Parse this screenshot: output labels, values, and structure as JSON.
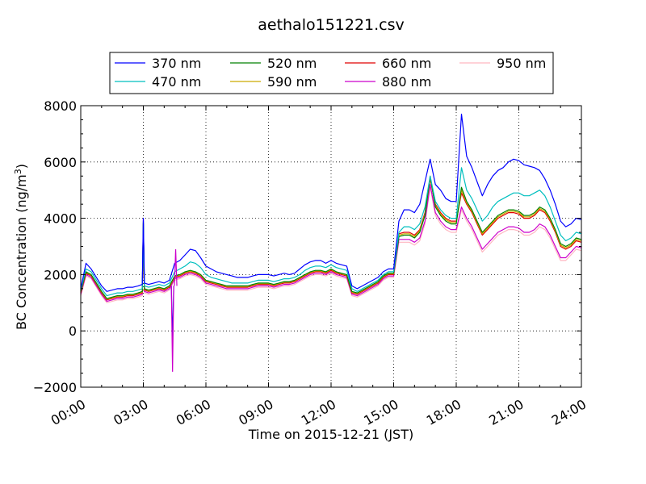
{
  "chart_data": {
    "type": "line",
    "title": "aethalo151221.csv",
    "xlabel": "Time on 2015-12-21 (JST)",
    "ylabel": "BC Concentration (ng/m",
    "ylabel_sup": "3",
    "ylabel_end": ")",
    "xlim": [
      0,
      24
    ],
    "ylim": [
      -2000,
      8000
    ],
    "x_ticks": [
      0,
      3,
      6,
      9,
      12,
      15,
      18,
      21,
      24
    ],
    "x_tick_labels": [
      "00:00",
      "03:00",
      "06:00",
      "09:00",
      "12:00",
      "15:00",
      "18:00",
      "21:00",
      "24:00"
    ],
    "y_ticks": [
      -2000,
      0,
      2000,
      4000,
      6000,
      8000
    ],
    "y_tick_labels": [
      "−2000",
      "0",
      "2000",
      "4000",
      "6000",
      "8000"
    ],
    "grid": true,
    "legend_position": "top-center",
    "x": [
      0.0,
      0.25,
      0.5,
      0.75,
      1.0,
      1.25,
      1.5,
      1.75,
      2.0,
      2.25,
      2.5,
      2.75,
      2.95,
      3.0,
      3.05,
      3.25,
      3.5,
      3.75,
      4.0,
      4.25,
      4.5,
      4.75,
      5.0,
      5.25,
      5.5,
      5.75,
      6.0,
      6.25,
      6.5,
      6.75,
      7.0,
      7.25,
      7.5,
      7.75,
      8.0,
      8.25,
      8.5,
      8.75,
      9.0,
      9.25,
      9.5,
      9.75,
      10.0,
      10.25,
      10.5,
      10.75,
      11.0,
      11.25,
      11.5,
      11.75,
      12.0,
      12.25,
      12.5,
      12.75,
      13.0,
      13.25,
      13.5,
      13.75,
      14.0,
      14.25,
      14.5,
      14.75,
      15.0,
      15.25,
      15.5,
      15.75,
      16.0,
      16.25,
      16.5,
      16.75,
      17.0,
      17.25,
      17.5,
      17.75,
      18.0,
      18.25,
      18.5,
      18.75,
      19.0,
      19.25,
      19.5,
      19.75,
      20.0,
      20.25,
      20.5,
      20.75,
      21.0,
      21.25,
      21.5,
      21.75,
      22.0,
      22.25,
      22.5,
      22.75,
      23.0,
      23.25,
      23.5,
      23.75,
      24.0
    ],
    "series": [
      {
        "name": "370 nm",
        "color": "#0000ff",
        "values": [
          1500,
          2400,
          2200,
          1900,
          1600,
          1400,
          1450,
          1500,
          1500,
          1550,
          1550,
          1600,
          1650,
          4000,
          1700,
          1650,
          1700,
          1750,
          1700,
          1800,
          2400,
          2500,
          2700,
          2900,
          2850,
          2600,
          2300,
          2200,
          2100,
          2050,
          2000,
          1950,
          1900,
          1900,
          1900,
          1950,
          2000,
          2000,
          2000,
          1950,
          2000,
          2050,
          2000,
          2050,
          2200,
          2350,
          2450,
          2500,
          2500,
          2400,
          2500,
          2400,
          2350,
          2300,
          1600,
          1500,
          1600,
          1700,
          1800,
          1900,
          2100,
          2200,
          2200,
          3900,
          4300,
          4300,
          4200,
          4500,
          5300,
          6100,
          5200,
          5000,
          4700,
          4600,
          4600,
          7700,
          6200,
          5800,
          5300,
          4800,
          5200,
          5500,
          5700,
          5800,
          6000,
          6100,
          6050,
          5900,
          5850,
          5800,
          5700,
          5400,
          5000,
          4500,
          3900,
          3700,
          3800,
          4000,
          3950
        ]
      },
      {
        "name": "470 nm",
        "color": "#00bfbf",
        "values": [
          1450,
          2200,
          2100,
          1800,
          1500,
          1250,
          1300,
          1350,
          1350,
          1400,
          1400,
          1450,
          1500,
          3900,
          1600,
          1550,
          1600,
          1650,
          1600,
          1700,
          2100,
          2200,
          2300,
          2450,
          2400,
          2250,
          2000,
          1900,
          1850,
          1800,
          1750,
          1700,
          1700,
          1700,
          1700,
          1750,
          1800,
          1800,
          1800,
          1750,
          1800,
          1850,
          1850,
          1900,
          2000,
          2150,
          2250,
          2300,
          2300,
          2250,
          2350,
          2250,
          2200,
          2150,
          1500,
          1400,
          1500,
          1600,
          1700,
          1800,
          2000,
          2100,
          2100,
          3500,
          3700,
          3700,
          3600,
          3800,
          4400,
          5500,
          4600,
          4300,
          4100,
          4000,
          4000,
          5800,
          5000,
          4700,
          4300,
          3900,
          4100,
          4400,
          4600,
          4700,
          4800,
          4900,
          4900,
          4800,
          4800,
          4900,
          5000,
          4800,
          4400,
          3900,
          3400,
          3200,
          3300,
          3500,
          3450
        ]
      },
      {
        "name": "520 nm",
        "color": "#008000",
        "values": [
          1400,
          2100,
          2000,
          1700,
          1400,
          1150,
          1200,
          1250,
          1250,
          1300,
          1300,
          1350,
          1400,
          3850,
          1500,
          1450,
          1500,
          1550,
          1500,
          1600,
          1950,
          2000,
          2100,
          2150,
          2100,
          2000,
          1800,
          1750,
          1700,
          1650,
          1600,
          1600,
          1600,
          1600,
          1600,
          1650,
          1700,
          1700,
          1700,
          1650,
          1700,
          1750,
          1750,
          1800,
          1900,
          2000,
          2100,
          2150,
          2150,
          2100,
          2200,
          2100,
          2050,
          2000,
          1400,
          1350,
          1450,
          1550,
          1650,
          1750,
          1950,
          2050,
          2050,
          3350,
          3400,
          3400,
          3300,
          3500,
          4100,
          5500,
          4400,
          4100,
          3900,
          3800,
          3800,
          5100,
          4600,
          4300,
          3900,
          3500,
          3700,
          3900,
          4100,
          4200,
          4300,
          4300,
          4250,
          4100,
          4100,
          4200,
          4400,
          4300,
          4000,
          3600,
          3100,
          3000,
          3100,
          3300,
          3250
        ]
      },
      {
        "name": "590 nm",
        "color": "#ccaa00",
        "values": [
          1380,
          2080,
          1980,
          1680,
          1380,
          1130,
          1180,
          1230,
          1230,
          1280,
          1280,
          1330,
          1380,
          3820,
          1480,
          1430,
          1480,
          1530,
          1480,
          1580,
          1920,
          1980,
          2080,
          2120,
          2080,
          1980,
          1780,
          1730,
          1680,
          1630,
          1580,
          1580,
          1580,
          1580,
          1580,
          1630,
          1680,
          1680,
          1680,
          1630,
          1680,
          1730,
          1730,
          1780,
          1880,
          1980,
          2080,
          2130,
          2130,
          2080,
          2180,
          2080,
          2030,
          1980,
          1380,
          1330,
          1430,
          1530,
          1630,
          1730,
          1930,
          2030,
          2030,
          3400,
          3450,
          3450,
          3350,
          3550,
          4150,
          5450,
          4450,
          4150,
          3950,
          3850,
          3850,
          5000,
          4550,
          4250,
          3850,
          3450,
          3650,
          3850,
          4050,
          4150,
          4250,
          4250,
          4200,
          4050,
          4050,
          4150,
          4350,
          4250,
          3950,
          3550,
          3050,
          2950,
          3050,
          3250,
          3200
        ]
      },
      {
        "name": "660 nm",
        "color": "#e00000",
        "values": [
          1350,
          2050,
          1950,
          1650,
          1350,
          1100,
          1150,
          1200,
          1200,
          1250,
          1250,
          1300,
          1350,
          3800,
          1450,
          1400,
          1450,
          1500,
          1450,
          1550,
          1900,
          1950,
          2050,
          2100,
          2050,
          1950,
          1750,
          1700,
          1650,
          1600,
          1550,
          1550,
          1550,
          1550,
          1550,
          1600,
          1650,
          1650,
          1650,
          1600,
          1650,
          1700,
          1700,
          1750,
          1850,
          1950,
          2050,
          2100,
          2100,
          2050,
          2150,
          2050,
          2000,
          1950,
          1350,
          1300,
          1400,
          1500,
          1600,
          1700,
          1900,
          2000,
          2000,
          3450,
          3500,
          3500,
          3400,
          3600,
          4200,
          5400,
          4500,
          4200,
          4000,
          3900,
          3900,
          4900,
          4500,
          4200,
          3800,
          3400,
          3600,
          3800,
          4000,
          4100,
          4200,
          4200,
          4150,
          4000,
          4000,
          4100,
          4300,
          4200,
          3900,
          3500,
          3000,
          2900,
          3000,
          3200,
          3150
        ]
      },
      {
        "name": "880 nm",
        "color": "#cc00cc",
        "values": [
          1300,
          2000,
          1900,
          1600,
          1300,
          1050,
          1100,
          1150,
          1150,
          1200,
          1200,
          1250,
          1300,
          4000,
          1400,
          1350,
          1400,
          1450,
          1400,
          1500,
          1850,
          1900,
          2000,
          2050,
          2000,
          1900,
          1700,
          1650,
          1600,
          1550,
          1500,
          1500,
          1500,
          1500,
          1500,
          1550,
          1600,
          1600,
          1600,
          1550,
          1600,
          1650,
          1650,
          1700,
          1800,
          1900,
          2000,
          2050,
          2050,
          2000,
          2100,
          2000,
          1950,
          1900,
          1300,
          1250,
          1350,
          1450,
          1550,
          1650,
          1850,
          1950,
          1950,
          3250,
          3250,
          3250,
          3150,
          3300,
          3900,
          5200,
          4200,
          3900,
          3700,
          3600,
          3600,
          4400,
          4000,
          3700,
          3300,
          2900,
          3100,
          3300,
          3500,
          3600,
          3700,
          3700,
          3650,
          3500,
          3500,
          3600,
          3800,
          3700,
          3400,
          3000,
          2600,
          2600,
          2800,
          3000,
          2950
        ]
      },
      {
        "name": "950 nm",
        "color": "#ffb6c1",
        "values": [
          1250,
          1950,
          1850,
          1550,
          1250,
          1000,
          1050,
          1100,
          1100,
          1150,
          1150,
          1200,
          1250,
          3700,
          1350,
          1300,
          1350,
          1400,
          1350,
          1450,
          1800,
          1850,
          1950,
          2000,
          1950,
          1850,
          1650,
          1600,
          1550,
          1500,
          1450,
          1450,
          1450,
          1450,
          1450,
          1500,
          1550,
          1550,
          1550,
          1500,
          1550,
          1600,
          1600,
          1650,
          1750,
          1850,
          1950,
          2000,
          2000,
          1950,
          2050,
          1950,
          1900,
          1850,
          1250,
          1200,
          1300,
          1400,
          1500,
          1600,
          1800,
          1900,
          1900,
          3150,
          3150,
          3150,
          3050,
          3200,
          3800,
          5100,
          4100,
          3800,
          3600,
          3500,
          3500,
          4300,
          3900,
          3600,
          3200,
          2800,
          3000,
          3200,
          3400,
          3500,
          3600,
          3600,
          3550,
          3400,
          3400,
          3500,
          3700,
          3600,
          3300,
          2900,
          2500,
          2500,
          2700,
          2900,
          2850
        ]
      }
    ],
    "spikes": [
      {
        "name": "370 nm",
        "x": 4.4,
        "y": -300
      },
      {
        "name": "880 nm",
        "x": 4.4,
        "y": -1450
      },
      {
        "name": "880 nm",
        "x": 4.55,
        "y": 2900
      }
    ]
  }
}
